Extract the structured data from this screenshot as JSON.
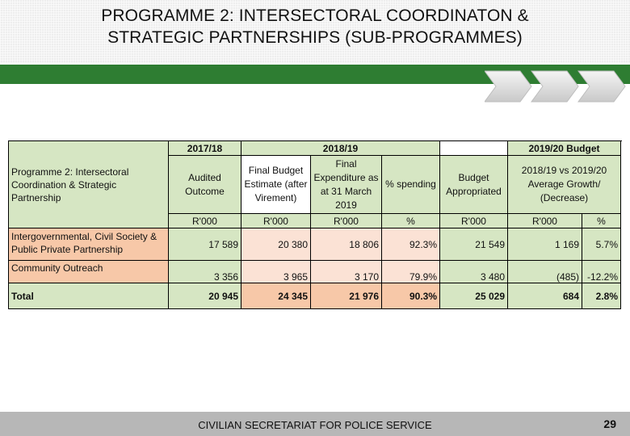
{
  "header": {
    "title_line1": "PROGRAMME 2: INTERSECTORAL COORDINATON &",
    "title_line2": "STRATEGIC PARTNERSHIPS  (SUB-PROGRAMMES)"
  },
  "colors": {
    "green_bar": "#2e7d32",
    "header_green": "#d6e6c3",
    "highlight_orange": "#f7c8a8",
    "highlight_peach": "#fbe2d5"
  },
  "table": {
    "row_label_header": "Programme 2: Intersectoral Coordination & Strategic Partnership",
    "year_2017": "2017/18",
    "year_2018": "2018/19",
    "year_2019": "2019/20 Budget",
    "col_audited": "Audited Outcome",
    "col_final_budget": "Final Budget Estimate (after Virement)",
    "col_final_exp": "Final Expenditure as at 31 March 2019",
    "col_pct_spending": "% spending",
    "col_budget_appr": "Budget Appropriated",
    "col_growth": "2018/19 vs 2019/20 Average Growth/ (Decrease)",
    "units": [
      "R'000",
      "R'000",
      "R'000",
      "%",
      "R'000",
      "R'000",
      "%"
    ],
    "rows": [
      {
        "label": "Intergovernmental, Civil Society & Public Private Partnership",
        "values": [
          "17 589",
          "20 380",
          "18 806",
          "92.3%",
          "21 549",
          "1 169",
          "5.7%"
        ]
      },
      {
        "label": "Community Outreach",
        "values": [
          "3 356",
          "3 965",
          "3 170",
          "79.9%",
          "3 480",
          "(485)",
          "-12.2%"
        ]
      },
      {
        "label": "Total",
        "values": [
          "20 945",
          "24 345",
          "21 976",
          "90.3%",
          "25 029",
          "684",
          "2.8%"
        ]
      }
    ]
  },
  "footer": {
    "organisation": "CIVILIAN SECRETARIAT FOR POLICE SERVICE",
    "page_number": "29"
  },
  "decor": {
    "chevrons": "arrow-chevron-icon"
  }
}
